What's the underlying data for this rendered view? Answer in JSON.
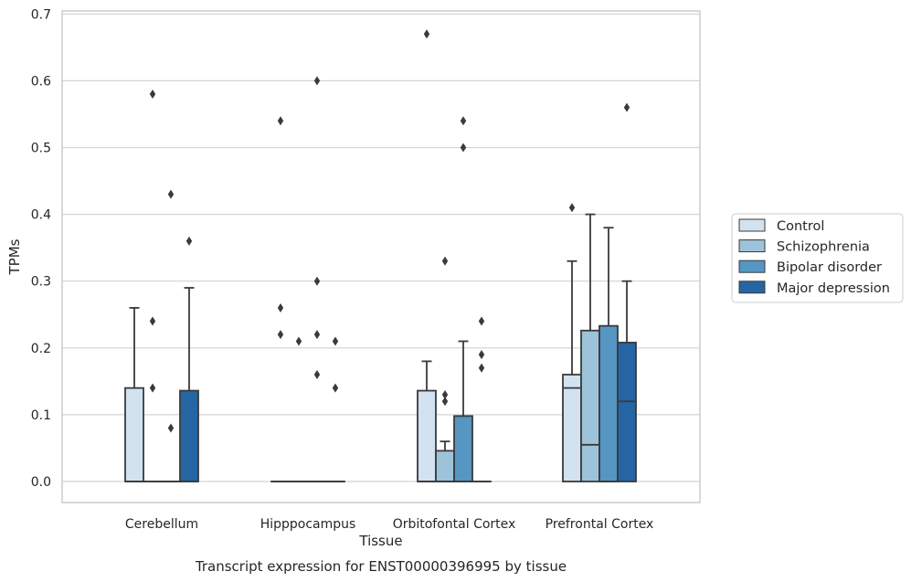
{
  "chart_data": {
    "type": "boxplot",
    "xlabel": "Tissue",
    "ylabel": "TPMs",
    "caption": "Transcript expression for ENST00000396995 by tissue",
    "ylim": [
      -0.03,
      0.705
    ],
    "yticks": [
      "0.0",
      "0.1",
      "0.2",
      "0.3",
      "0.4",
      "0.5",
      "0.6",
      "0.7"
    ],
    "grid": "horizontal",
    "legend_position": "right",
    "categories": [
      "Cerebellum",
      "Hipppocampus",
      "Orbitofontal Cortex",
      "Prefrontal Cortex"
    ],
    "series": [
      {
        "name": "Control",
        "color": "#d2e2f0",
        "boxes": [
          {
            "q1": 0.0,
            "median": 0.0,
            "q3": 0.14,
            "whisker_low": 0.0,
            "whisker_high": 0.26,
            "outliers": []
          },
          {
            "q1": 0.0,
            "median": 0.0,
            "q3": 0.0,
            "whisker_low": 0.0,
            "whisker_high": 0.0,
            "outliers": [
              0.54,
              0.26,
              0.22
            ]
          },
          {
            "q1": 0.0,
            "median": 0.0,
            "q3": 0.136,
            "whisker_low": 0.0,
            "whisker_high": 0.18,
            "outliers": [
              0.67
            ]
          },
          {
            "q1": 0.0,
            "median": 0.14,
            "q3": 0.16,
            "whisker_low": 0.0,
            "whisker_high": 0.33,
            "outliers": [
              0.41
            ]
          }
        ]
      },
      {
        "name": "Schizophrenia",
        "color": "#9cc3da",
        "boxes": [
          {
            "q1": 0.0,
            "median": 0.0,
            "q3": 0.0,
            "whisker_low": 0.0,
            "whisker_high": 0.0,
            "outliers": [
              0.58,
              0.24,
              0.14
            ]
          },
          {
            "q1": 0.0,
            "median": 0.0,
            "q3": 0.0,
            "whisker_low": 0.0,
            "whisker_high": 0.0,
            "outliers": [
              0.21
            ]
          },
          {
            "q1": 0.0,
            "median": 0.0,
            "q3": 0.046,
            "whisker_low": 0.0,
            "whisker_high": 0.06,
            "outliers": [
              0.33,
              0.13,
              0.12
            ]
          },
          {
            "q1": 0.0,
            "median": 0.055,
            "q3": 0.226,
            "whisker_low": 0.0,
            "whisker_high": 0.4,
            "outliers": []
          }
        ]
      },
      {
        "name": "Bipolar disorder",
        "color": "#5596c3",
        "boxes": [
          {
            "q1": 0.0,
            "median": 0.0,
            "q3": 0.0,
            "whisker_low": 0.0,
            "whisker_high": 0.0,
            "outliers": [
              0.43,
              0.08
            ]
          },
          {
            "q1": 0.0,
            "median": 0.0,
            "q3": 0.0,
            "whisker_low": 0.0,
            "whisker_high": 0.0,
            "outliers": [
              0.6,
              0.3,
              0.22,
              0.16
            ]
          },
          {
            "q1": 0.0,
            "median": 0.0,
            "q3": 0.098,
            "whisker_low": 0.0,
            "whisker_high": 0.21,
            "outliers": [
              0.54,
              0.5
            ]
          },
          {
            "q1": 0.0,
            "median": 0.0,
            "q3": 0.233,
            "whisker_low": 0.0,
            "whisker_high": 0.38,
            "outliers": []
          }
        ]
      },
      {
        "name": "Major depression",
        "color": "#2565a3",
        "boxes": [
          {
            "q1": 0.0,
            "median": 0.0,
            "q3": 0.136,
            "whisker_low": 0.0,
            "whisker_high": 0.29,
            "outliers": [
              0.36
            ]
          },
          {
            "q1": 0.0,
            "median": 0.0,
            "q3": 0.0,
            "whisker_low": 0.0,
            "whisker_high": 0.0,
            "outliers": [
              0.21,
              0.14
            ]
          },
          {
            "q1": 0.0,
            "median": 0.0,
            "q3": 0.0,
            "whisker_low": 0.0,
            "whisker_high": 0.0,
            "outliers": [
              0.24,
              0.19,
              0.17
            ]
          },
          {
            "q1": 0.0,
            "median": 0.12,
            "q3": 0.208,
            "whisker_low": 0.0,
            "whisker_high": 0.3,
            "outliers": [
              0.56
            ]
          }
        ]
      }
    ]
  }
}
